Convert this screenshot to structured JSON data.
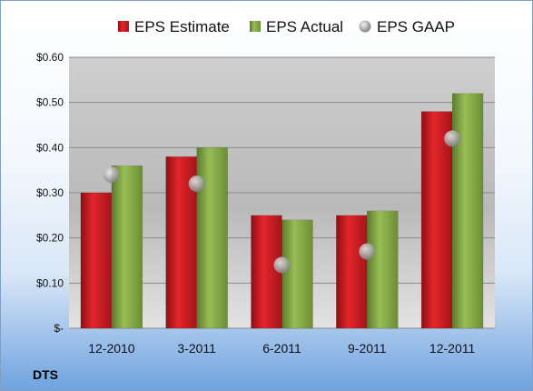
{
  "chart_data": {
    "type": "bar",
    "ticker": "DTS",
    "categories": [
      "12-2010",
      "3-2011",
      "6-2011",
      "9-2011",
      "12-2011"
    ],
    "series": [
      {
        "name": "EPS Estimate",
        "kind": "bar",
        "color": "#c0181d",
        "values": [
          0.3,
          0.38,
          0.25,
          0.25,
          0.48
        ]
      },
      {
        "name": "EPS Actual",
        "kind": "bar",
        "color": "#7ea040",
        "values": [
          0.36,
          0.4,
          0.24,
          0.26,
          0.52
        ]
      },
      {
        "name": "EPS GAAP",
        "kind": "marker",
        "color": "#a8a8a8",
        "values": [
          0.34,
          0.32,
          0.14,
          0.17,
          0.42
        ]
      }
    ],
    "ylim": [
      0,
      0.6
    ],
    "yticks": [
      0,
      0.1,
      0.2,
      0.3,
      0.4,
      0.5,
      0.6
    ],
    "ytick_labels": [
      "$-",
      "$0.10",
      "$0.20",
      "$0.30",
      "$0.40",
      "$0.50",
      "$0.60"
    ],
    "grid": true,
    "legend_position": "top"
  }
}
